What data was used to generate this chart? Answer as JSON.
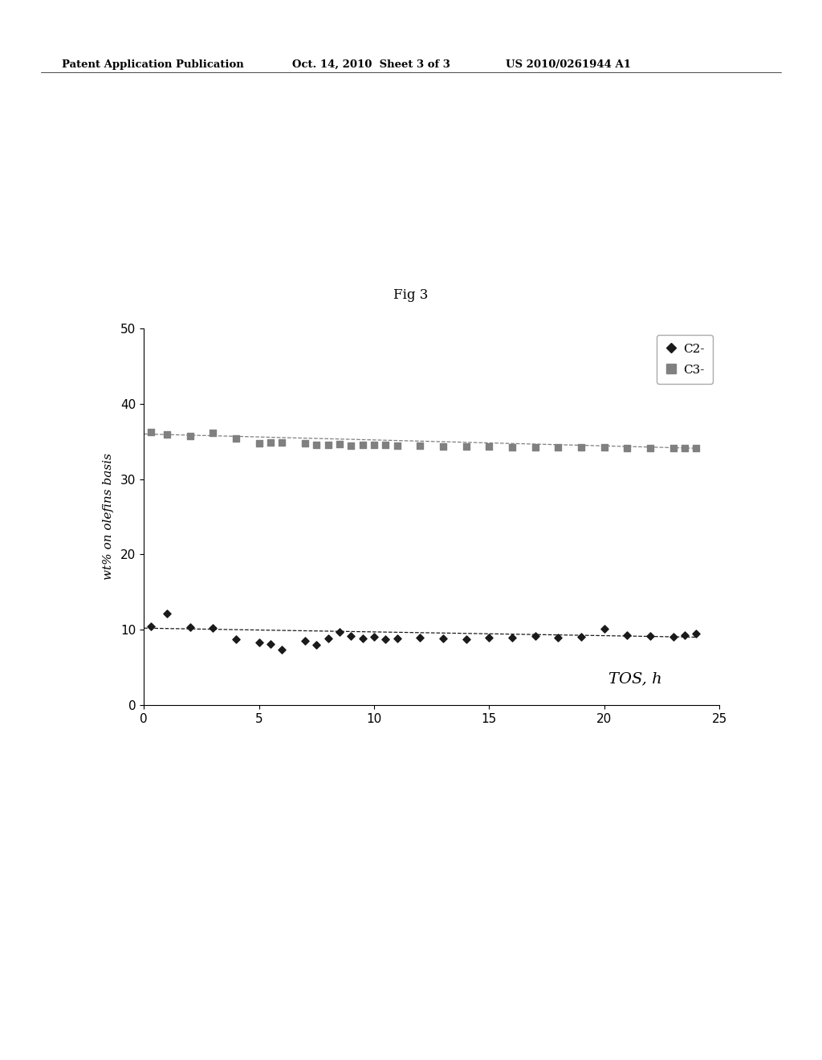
{
  "fig_label": "Fig 3",
  "header_left": "Patent Application Publication",
  "header_mid": "Oct. 14, 2010  Sheet 3 of 3",
  "header_right": "US 2010/0261944 A1",
  "xlabel": "TOS, h",
  "ylabel": "wt% on olefins basis",
  "xlim": [
    0,
    25
  ],
  "ylim": [
    0,
    50
  ],
  "xticks": [
    0,
    5,
    10,
    15,
    20,
    25
  ],
  "yticks": [
    0,
    10,
    20,
    30,
    40,
    50
  ],
  "c2_x": [
    0.3,
    1.0,
    2.0,
    3.0,
    4.0,
    5.0,
    5.5,
    6.0,
    7.0,
    7.5,
    8.0,
    8.5,
    9.0,
    9.5,
    10.0,
    10.5,
    11.0,
    12.0,
    13.0,
    14.0,
    15.0,
    16.0,
    17.0,
    18.0,
    19.0,
    20.0,
    21.0,
    22.0,
    23.0,
    23.5,
    24.0
  ],
  "c2_y": [
    10.4,
    12.1,
    10.3,
    10.2,
    8.7,
    8.3,
    8.1,
    7.3,
    8.5,
    8.0,
    8.8,
    9.7,
    9.2,
    8.8,
    9.1,
    8.7,
    8.8,
    8.9,
    8.8,
    8.7,
    8.9,
    8.9,
    9.2,
    8.9,
    9.1,
    10.1,
    9.3,
    9.2,
    9.1,
    9.3,
    9.5
  ],
  "c3_x": [
    0.3,
    1.0,
    2.0,
    3.0,
    4.0,
    5.0,
    5.5,
    6.0,
    7.0,
    7.5,
    8.0,
    8.5,
    9.0,
    9.5,
    10.0,
    10.5,
    11.0,
    12.0,
    13.0,
    14.0,
    15.0,
    16.0,
    17.0,
    18.0,
    19.0,
    20.0,
    21.0,
    22.0,
    23.0,
    23.5,
    24.0
  ],
  "c3_y": [
    36.3,
    35.9,
    35.7,
    36.2,
    35.4,
    34.8,
    34.9,
    34.9,
    34.8,
    34.6,
    34.5,
    34.7,
    34.4,
    34.6,
    34.5,
    34.5,
    34.4,
    34.4,
    34.3,
    34.3,
    34.3,
    34.2,
    34.2,
    34.2,
    34.2,
    34.2,
    34.1,
    34.1,
    34.1,
    34.1,
    34.1
  ],
  "c2_trend_x": [
    0,
    24
  ],
  "c2_trend_y": [
    10.2,
    9.0
  ],
  "c3_trend_x": [
    0,
    24
  ],
  "c3_trend_y": [
    36.0,
    34.1
  ],
  "c2_color": "#1a1a1a",
  "c3_color": "#808080",
  "background_color": "#ffffff",
  "legend_labels": [
    "C2-",
    "C3-"
  ]
}
